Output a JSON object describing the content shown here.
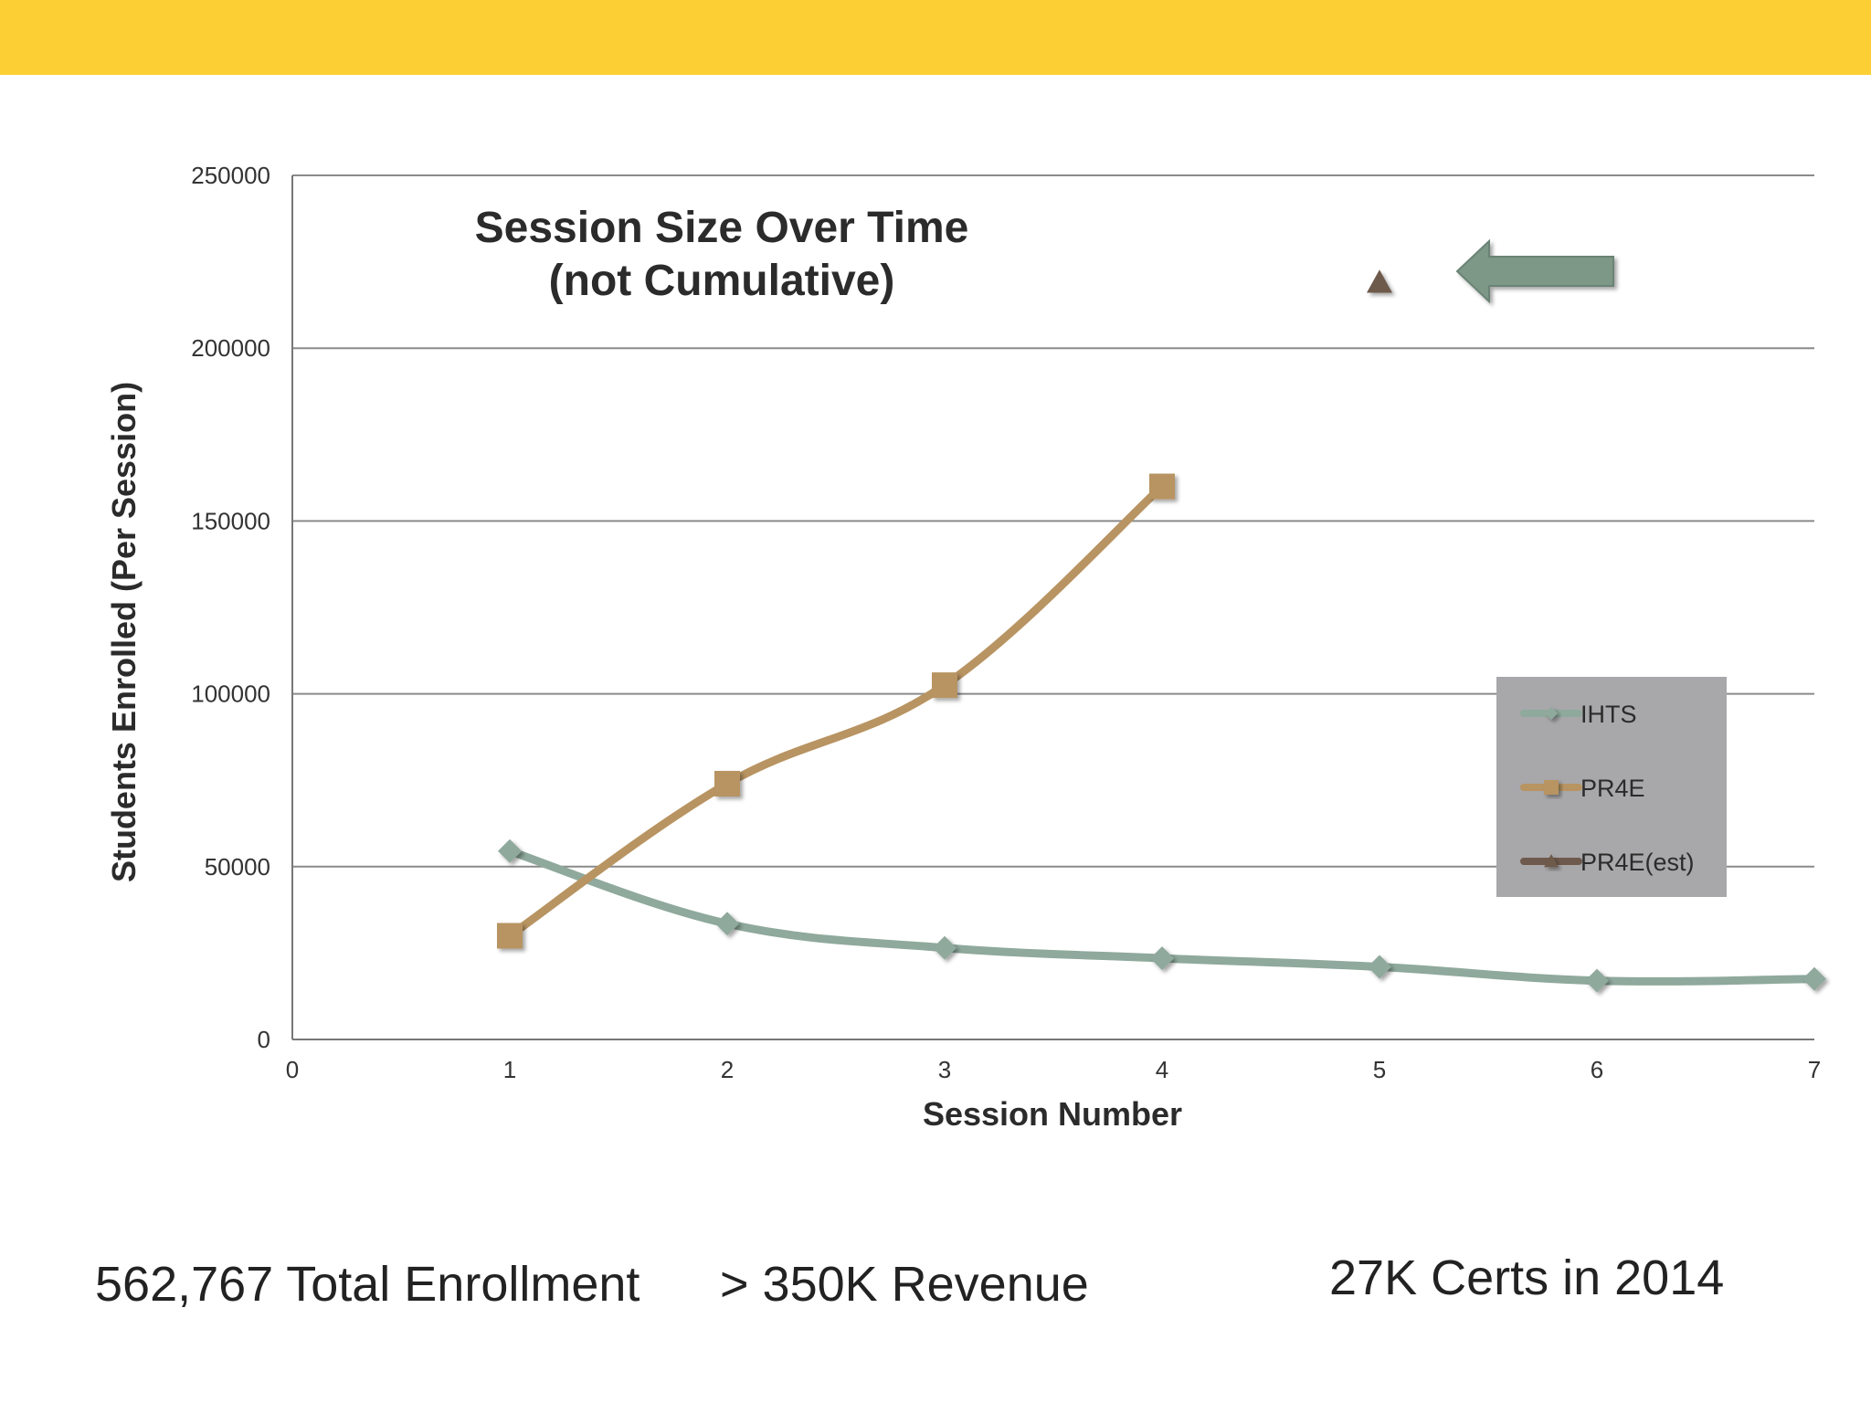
{
  "colors": {
    "top_bar": "#fcd035",
    "ihts": "#8fa99c",
    "pr4e": "#b89462",
    "pr4e_est": "#6e5a4c",
    "legend_bg": "#a8a7aa",
    "arrow": "#7e9888"
  },
  "chart_data": {
    "type": "line",
    "title": [
      "Session Size Over Time",
      "(not Cumulative)"
    ],
    "xlabel": "Session Number",
    "ylabel": "Students Enrolled (Per Session)",
    "xlim": [
      0,
      7
    ],
    "ylim": [
      0,
      250000
    ],
    "x_ticks": [
      "0",
      "1",
      "2",
      "3",
      "4",
      "5",
      "6",
      "7"
    ],
    "y_ticks": [
      "0",
      "50000",
      "100000",
      "150000",
      "200000",
      "250000"
    ],
    "grid": true,
    "legend_position": "right",
    "series": [
      {
        "name": "IHTS",
        "marker": "diamond",
        "points": [
          [
            1,
            54500
          ],
          [
            2,
            33500
          ],
          [
            3,
            26500
          ],
          [
            4,
            23500
          ],
          [
            5,
            21000
          ],
          [
            6,
            17000
          ],
          [
            7,
            17500
          ]
        ]
      },
      {
        "name": "PR4E",
        "marker": "square",
        "points": [
          [
            1,
            30000
          ],
          [
            2,
            74000
          ],
          [
            3,
            102500
          ],
          [
            4,
            160000
          ]
        ]
      },
      {
        "name": "PR4E(est)",
        "marker": "triangle",
        "points": [
          [
            5,
            219000
          ]
        ]
      }
    ],
    "annotations": [
      "arrow-left"
    ]
  },
  "footer": {
    "enrollment": "562,767 Total Enrollment",
    "revenue": "> 350K Revenue",
    "certs": "27K Certs in 2014"
  }
}
